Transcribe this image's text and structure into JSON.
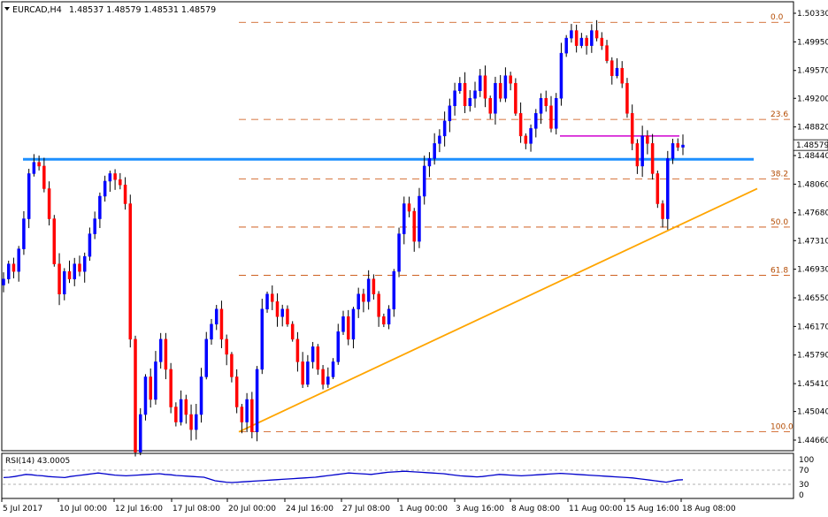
{
  "header": {
    "symbol": "EURCAD,H4",
    "ohlc": "1.48537 1.48579 1.48531 1.48579"
  },
  "rsi": {
    "label": "RSI(14) 43.0005",
    "levels": [
      "100",
      "70",
      "30",
      "0"
    ],
    "values": [
      49,
      50,
      52,
      55,
      58,
      57,
      55,
      54,
      52,
      51,
      50,
      49,
      52,
      54,
      56,
      58,
      60,
      62,
      60,
      58,
      56,
      55,
      54,
      55,
      56,
      57,
      58,
      59,
      60,
      58,
      57,
      55,
      54,
      53,
      52,
      51,
      50,
      45,
      40,
      38,
      36,
      35,
      36,
      37,
      38,
      39,
      40,
      41,
      42,
      43,
      44,
      45,
      46,
      47,
      48,
      49,
      50,
      52,
      54,
      56,
      58,
      60,
      62,
      61,
      60,
      59,
      58,
      60,
      62,
      64,
      65,
      66,
      67,
      66,
      65,
      64,
      63,
      62,
      61,
      60,
      58,
      56,
      54,
      53,
      52,
      51,
      52,
      54,
      56,
      58,
      57,
      56,
      55,
      54,
      55,
      56,
      57,
      58,
      59,
      60,
      61,
      60,
      59,
      58,
      57,
      56,
      55,
      54,
      53,
      52,
      51,
      50,
      49,
      48,
      46,
      44,
      42,
      40,
      38,
      36,
      39,
      42,
      43
    ]
  },
  "y_axis": {
    "ticks": [
      "1.50330",
      "1.49950",
      "1.49570",
      "1.49200",
      "1.48820",
      "1.48440",
      "1.48060",
      "1.47680",
      "1.47310",
      "1.46930",
      "1.46550",
      "1.46170",
      "1.45790",
      "1.45410",
      "1.45040",
      "1.44660"
    ],
    "current_price": "1.48579"
  },
  "x_axis": {
    "ticks": [
      "5 Jul 2017",
      "10 Jul 00:00",
      "12 Jul 16:00",
      "17 Jul 08:00",
      "20 Jul 00:00",
      "24 Jul 16:00",
      "27 Jul 08:00",
      "1 Aug 00:00",
      "3 Aug 16:00",
      "8 Aug 08:00",
      "11 Aug 00:00",
      "15 Aug 16:00",
      "18 Aug 08:00"
    ]
  },
  "fibonacci": {
    "levels": [
      {
        "label": "0.0",
        "price": 1.5021
      },
      {
        "label": "23.6",
        "price": 1.4892
      },
      {
        "label": "38.2",
        "price": 1.4813
      },
      {
        "label": "50.0",
        "price": 1.4749
      },
      {
        "label": "61.8",
        "price": 1.4685
      },
      {
        "label": "100.0",
        "price": 1.4477
      }
    ]
  },
  "colors": {
    "bull": "#0000ff",
    "bear": "#ff0000",
    "support_line": "#1e90ff",
    "trend_line": "#ffa500",
    "resistance_line": "#d000d0",
    "fib_line": "#c84a00",
    "rsi_line": "#0000cc"
  },
  "chart_data": {
    "type": "candlestick",
    "title": "EURCAD,H4",
    "ylim": [
      1.4445,
      1.5043
    ],
    "timeframe": "H4",
    "price_path": [
      1.468,
      1.47,
      1.469,
      1.472,
      1.476,
      1.482,
      1.4835,
      1.483,
      1.48,
      1.476,
      1.47,
      1.466,
      1.469,
      1.468,
      1.47,
      1.469,
      1.471,
      1.474,
      1.476,
      1.479,
      1.481,
      1.482,
      1.4812,
      1.4805,
      1.478,
      1.46,
      1.445,
      1.45,
      1.455,
      1.452,
      1.457,
      1.46,
      1.456,
      1.451,
      1.449,
      1.452,
      1.45,
      1.448,
      1.45,
      1.455,
      1.46,
      1.462,
      1.464,
      1.46,
      1.458,
      1.455,
      1.451,
      1.449,
      1.452,
      1.4477,
      1.456,
      1.464,
      1.466,
      1.465,
      1.463,
      1.464,
      1.462,
      1.46,
      1.457,
      1.454,
      1.457,
      1.459,
      1.456,
      1.454,
      1.455,
      1.457,
      1.461,
      1.463,
      1.46,
      1.464,
      1.466,
      1.465,
      1.468,
      1.466,
      1.463,
      1.462,
      1.464,
      1.469,
      1.474,
      1.478,
      1.477,
      1.473,
      1.479,
      1.483,
      1.484,
      1.486,
      1.487,
      1.489,
      1.491,
      1.493,
      1.494,
      1.491,
      1.492,
      1.493,
      1.495,
      1.492,
      1.49,
      1.494,
      1.492,
      1.495,
      1.494,
      1.49,
      1.487,
      1.486,
      1.488,
      1.49,
      1.492,
      1.491,
      1.488,
      1.492,
      1.498,
      1.5,
      1.501,
      1.499,
      1.5,
      1.499,
      1.501,
      1.5,
      1.499,
      1.497,
      1.495,
      1.496,
      1.494,
      1.49,
      1.486,
      1.483,
      1.487,
      1.486,
      1.482,
      1.478,
      1.476,
      1.484,
      1.486,
      1.4855,
      1.4858
    ],
    "support_level": 1.4839,
    "resistance_level": 1.487,
    "trend_line": [
      [
        0,
        1.4477
      ],
      [
        131,
        1.4786
      ]
    ],
    "last_price": 1.48579
  }
}
